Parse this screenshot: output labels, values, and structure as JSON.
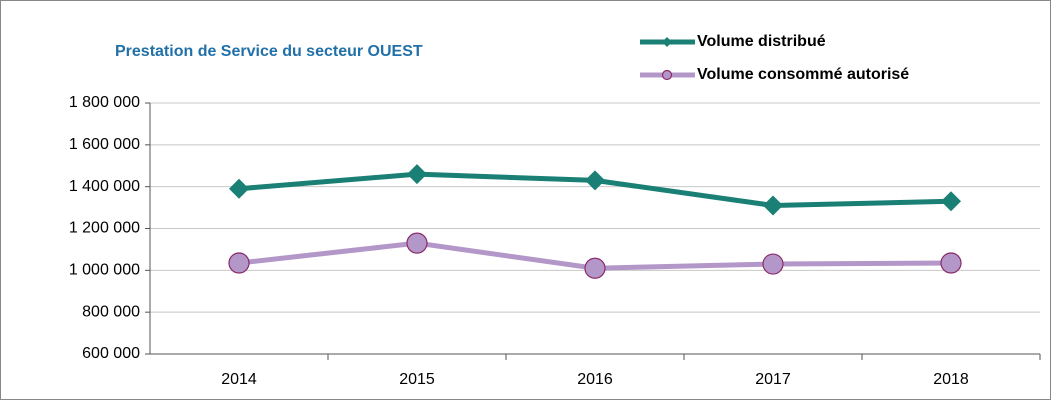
{
  "chart_data": {
    "type": "line",
    "title": "Prestation de Service du secteur OUEST",
    "categories": [
      "2014",
      "2015",
      "2016",
      "2017",
      "2018"
    ],
    "series": [
      {
        "name": "Volume distribué",
        "color": "#1a7f74",
        "marker": "diamond",
        "values": [
          1390000,
          1460000,
          1430000,
          1310000,
          1330000
        ]
      },
      {
        "name": "Volume consommé autorisé",
        "color": "#b497c9",
        "marker": "circle",
        "values": [
          1035000,
          1130000,
          1010000,
          1030000,
          1035000
        ]
      }
    ],
    "ylim": [
      600000,
      1800000
    ],
    "yticks": [
      {
        "value": 600000,
        "label": "600 000"
      },
      {
        "value": 800000,
        "label": "800 000"
      },
      {
        "value": 1000000,
        "label": "1 000 000"
      },
      {
        "value": 1200000,
        "label": "1 200 000"
      },
      {
        "value": 1400000,
        "label": "1 400 000"
      },
      {
        "value": 1600000,
        "label": "1 600 000"
      },
      {
        "value": 1800000,
        "label": "1 800 000"
      }
    ],
    "grid": true
  }
}
